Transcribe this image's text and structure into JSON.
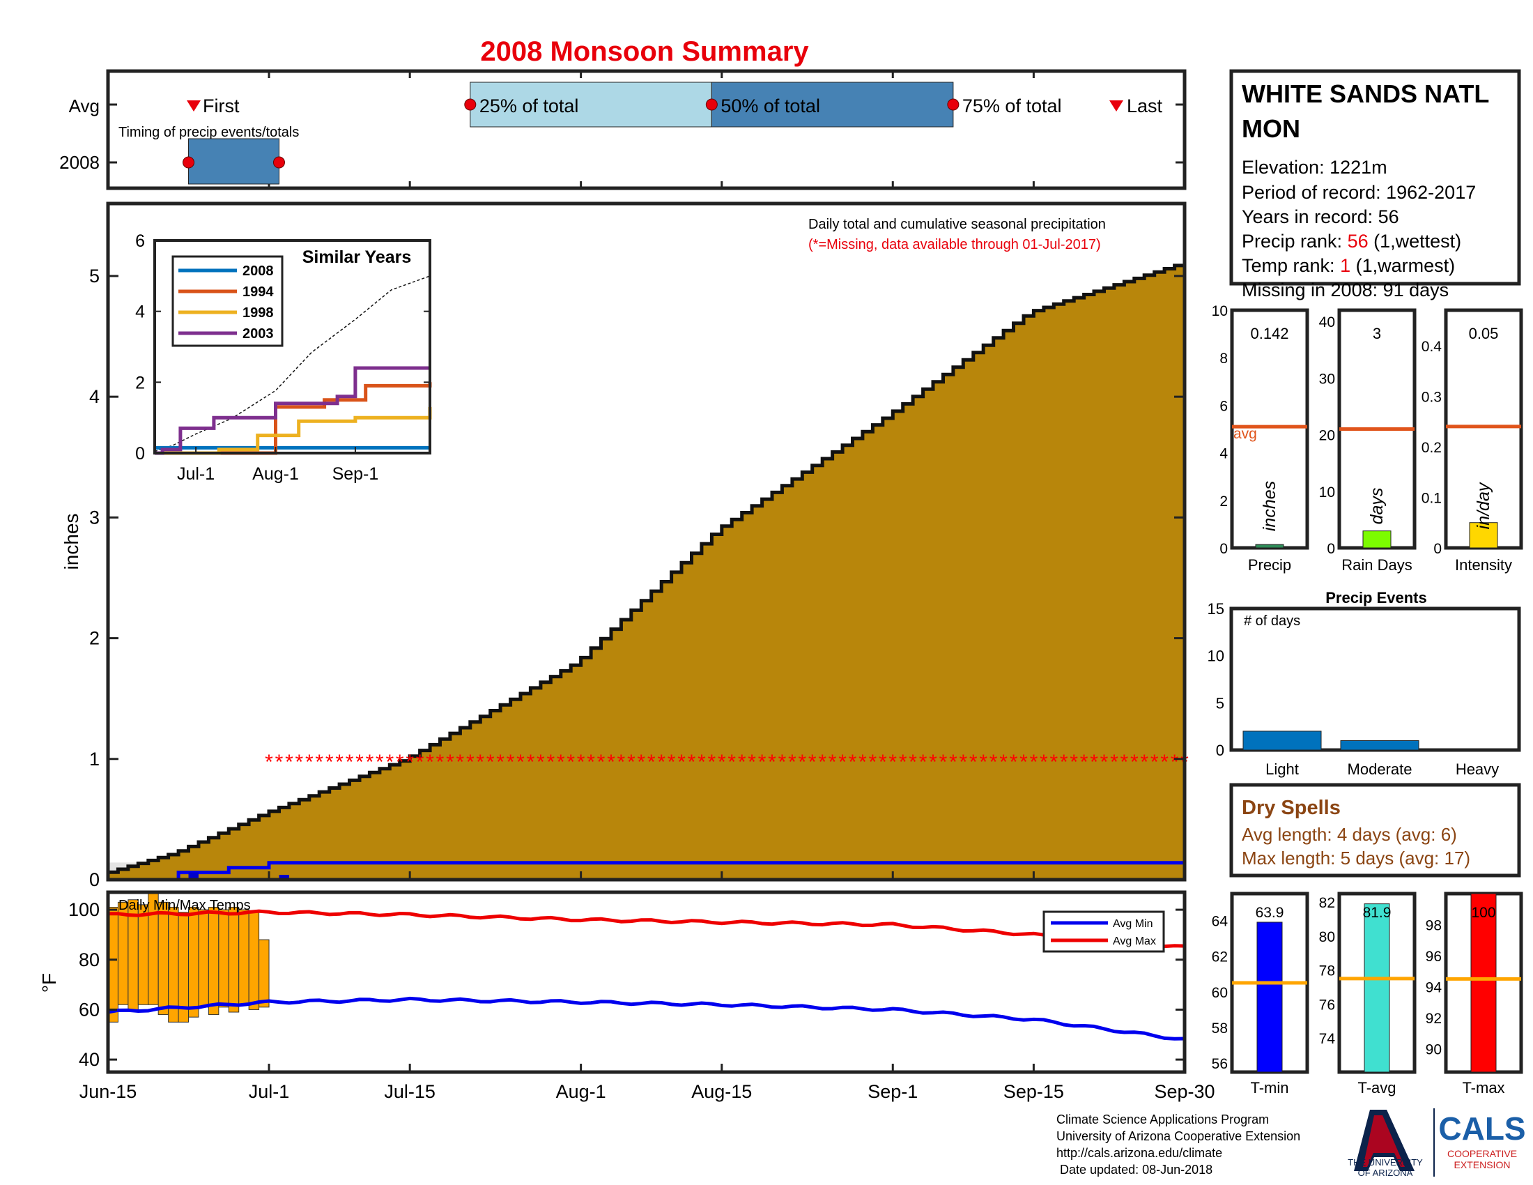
{
  "title": "2008 Monsoon Summary",
  "x_ticks": [
    "Jun-15",
    "Jul-1",
    "Jul-15",
    "Aug-1",
    "Aug-15",
    "Sep-1",
    "Sep-15",
    "Sep-30"
  ],
  "timing": {
    "row_labels": [
      "Avg",
      "2008"
    ],
    "markers": {
      "first": "First",
      "q25": "25% of total",
      "q50": "50% of total",
      "q75": "75% of total",
      "last": "Last"
    },
    "caption": "Timing of precip events/totals",
    "avg_days": {
      "q25": 36,
      "q50": 60,
      "q75": 84
    },
    "year_days": {
      "start": 8,
      "end": 17
    }
  },
  "station": {
    "name_line1": "WHITE SANDS NATL",
    "name_line2": "MON",
    "elevation": "Elevation: 1221m",
    "period": "Period of record: 1962-2017",
    "years": "Years in record: 56",
    "precip_rank_label": "Precip rank: ",
    "precip_rank_value": "56",
    "precip_rank_note": " (1,wettest)",
    "temp_rank_label": "Temp rank: ",
    "temp_rank_value": "1",
    "temp_rank_note": " (1,warmest)",
    "missing": "Missing in 2008: 91 days"
  },
  "main_panel": {
    "note1": "Daily total and cumulative seasonal precipitation",
    "note2": "(*=Missing, data available through 01-Jul-2017)",
    "ylabel": "inches",
    "colors": {
      "cumulative_fill": "#b8860b",
      "year_line": "#0000ee",
      "missing": "#ff0000"
    }
  },
  "inset": {
    "title": "Similar Years",
    "legend": [
      "2008",
      "1994",
      "1998",
      "2003"
    ],
    "x_ticks": [
      "Jul-1",
      "Aug-1",
      "Sep-1"
    ],
    "colors": [
      "#0072bd",
      "#d95319",
      "#edb120",
      "#7e2f8e"
    ]
  },
  "stat_bars": [
    {
      "label": "Precip",
      "value": "0.142",
      "unit": "inches",
      "avg_label": "avg",
      "ticks": [
        "0",
        "2",
        "4",
        "6",
        "8",
        "10"
      ],
      "max": 10,
      "val": 0.142,
      "avg": 5.1,
      "color": "#2e8b57"
    },
    {
      "label": "Rain Days",
      "value": "3",
      "unit": "days",
      "ticks": [
        "0",
        "10",
        "20",
        "30",
        "40"
      ],
      "max": 42,
      "val": 3,
      "avg": 21,
      "color": "#7cfc00"
    },
    {
      "label": "Intensity",
      "value": "0.05",
      "unit": "in/day",
      "ticks": [
        "0",
        "0.1",
        "0.2",
        "0.3",
        "0.4"
      ],
      "max": 0.47,
      "val": 0.05,
      "avg": 0.24,
      "color": "#ffd700"
    }
  ],
  "precip_events": {
    "title": "Precip Events",
    "note": "# of days",
    "categories": [
      "Light",
      "Moderate",
      "Heavy"
    ],
    "values": [
      2,
      1,
      0
    ],
    "ticks": [
      "0",
      "5",
      "10",
      "15"
    ]
  },
  "dry_spells": {
    "title": "Dry Spells",
    "avg_length": "Avg length: 4 days (avg: 6)",
    "max_length": "Max length: 5 days (avg: 17)"
  },
  "temps": {
    "label": "Daily Min/Max Temps",
    "ylabel": "°F",
    "legend": [
      "Avg Min",
      "Avg Max"
    ],
    "bars": [
      {
        "label": "T-min",
        "value": "63.9",
        "ticks": [
          "56",
          "58",
          "60",
          "62",
          "64"
        ],
        "lo": 55.5,
        "hi": 65.5,
        "val": 63.9,
        "avg": 60.5,
        "color": "#0000ff"
      },
      {
        "label": "T-avg",
        "value": "81.9",
        "ticks": [
          "74",
          "76",
          "78",
          "80",
          "82"
        ],
        "lo": 72,
        "hi": 82.5,
        "val": 81.9,
        "avg": 77.5,
        "color": "#40e0d0"
      },
      {
        "label": "T-max",
        "value": "100",
        "ticks": [
          "90",
          "92",
          "94",
          "96",
          "98"
        ],
        "lo": 88.5,
        "hi": 100,
        "val": 100,
        "avg": 94.5,
        "color": "#ff0000"
      }
    ]
  },
  "chart_data": [
    {
      "type": "area",
      "title": "Daily total and cumulative seasonal precipitation",
      "ylabel": "inches",
      "x_range": [
        "Jun-15",
        "Sep-30"
      ],
      "ylim": [
        0,
        5.6
      ],
      "series": [
        {
          "name": "Avg",
          "x": [
            "Jun-15",
            "Jun-22",
            "Jul-1",
            "Jul-15",
            "Aug-1",
            "Aug-15",
            "Sep-1",
            "Sep-15",
            "Sep-30"
          ],
          "values": [
            0.05,
            0.22,
            0.55,
            1.0,
            1.8,
            2.9,
            3.85,
            4.7,
            5.1
          ]
        },
        {
          "name": "2008",
          "x": [
            "Jun-15",
            "Jun-20",
            "Jun-22",
            "Jun-27",
            "Jul-1",
            "Sep-30"
          ],
          "values": [
            0,
            0,
            0.06,
            0.1,
            0.14,
            0.142
          ]
        }
      ],
      "missing_value_marker": {
        "value": 1.0,
        "from": "Jul-1",
        "to": "Sep-30"
      }
    },
    {
      "type": "line",
      "title": "Similar Years",
      "ylim": [
        0,
        6
      ],
      "x_ticks": [
        "Jul-1",
        "Aug-1",
        "Sep-1"
      ],
      "series": [
        {
          "name": "2008",
          "x": [
            "Jun-15",
            "Sep-30"
          ],
          "values": [
            0.15,
            0.15
          ]
        },
        {
          "name": "1994",
          "x": [
            "Jun-15",
            "Jul-28",
            "Aug-1",
            "Aug-20",
            "Sep-5",
            "Sep-30"
          ],
          "values": [
            0,
            0,
            1.3,
            1.5,
            1.9,
            2.0
          ]
        },
        {
          "name": "1998",
          "x": [
            "Jun-15",
            "Jul-10",
            "Jul-25",
            "Aug-10",
            "Sep-1",
            "Sep-30"
          ],
          "values": [
            0,
            0.1,
            0.5,
            0.9,
            1.0,
            1.3
          ]
        },
        {
          "name": "2003",
          "x": [
            "Jun-15",
            "Jun-18",
            "Jun-25",
            "Jul-8",
            "Aug-1",
            "Aug-25",
            "Sep-1",
            "Sep-30"
          ],
          "values": [
            0,
            0.1,
            0.7,
            1.0,
            1.4,
            1.6,
            2.4,
            2.4
          ]
        }
      ]
    },
    {
      "type": "bar",
      "title": "Precip Events",
      "categories": [
        "Light",
        "Moderate",
        "Heavy"
      ],
      "values": [
        2,
        1,
        0
      ],
      "ylim": [
        0,
        15
      ]
    },
    {
      "type": "line",
      "title": "Daily Min/Max Temps",
      "ylabel": "°F",
      "ylim": [
        35,
        107
      ],
      "series": [
        {
          "name": "Avg Min",
          "x": [
            "Jun-15",
            "Jul-1",
            "Jul-15",
            "Aug-1",
            "Aug-15",
            "Sep-1",
            "Sep-15",
            "Sep-30"
          ],
          "values": [
            59,
            63,
            64,
            63,
            62,
            60,
            56,
            48
          ]
        },
        {
          "name": "Avg Max",
          "x": [
            "Jun-15",
            "Jul-1",
            "Jul-15",
            "Aug-1",
            "Aug-15",
            "Sep-1",
            "Sep-15",
            "Sep-30"
          ],
          "values": [
            98,
            99,
            98,
            96,
            95,
            94,
            90,
            85
          ]
        }
      ]
    }
  ],
  "footer": {
    "lines": [
      "Climate Science Applications Program",
      "University of Arizona Cooperative Extension",
      "http://cals.arizona.edu/climate",
      " Date updated: 08-Jun-2018"
    ],
    "ua1": "THE UNIVERSITY",
    "ua2": "OF ARIZONA",
    "cals": "CALS",
    "coop1": "COOPERATIVE",
    "coop2": "EXTENSION"
  }
}
